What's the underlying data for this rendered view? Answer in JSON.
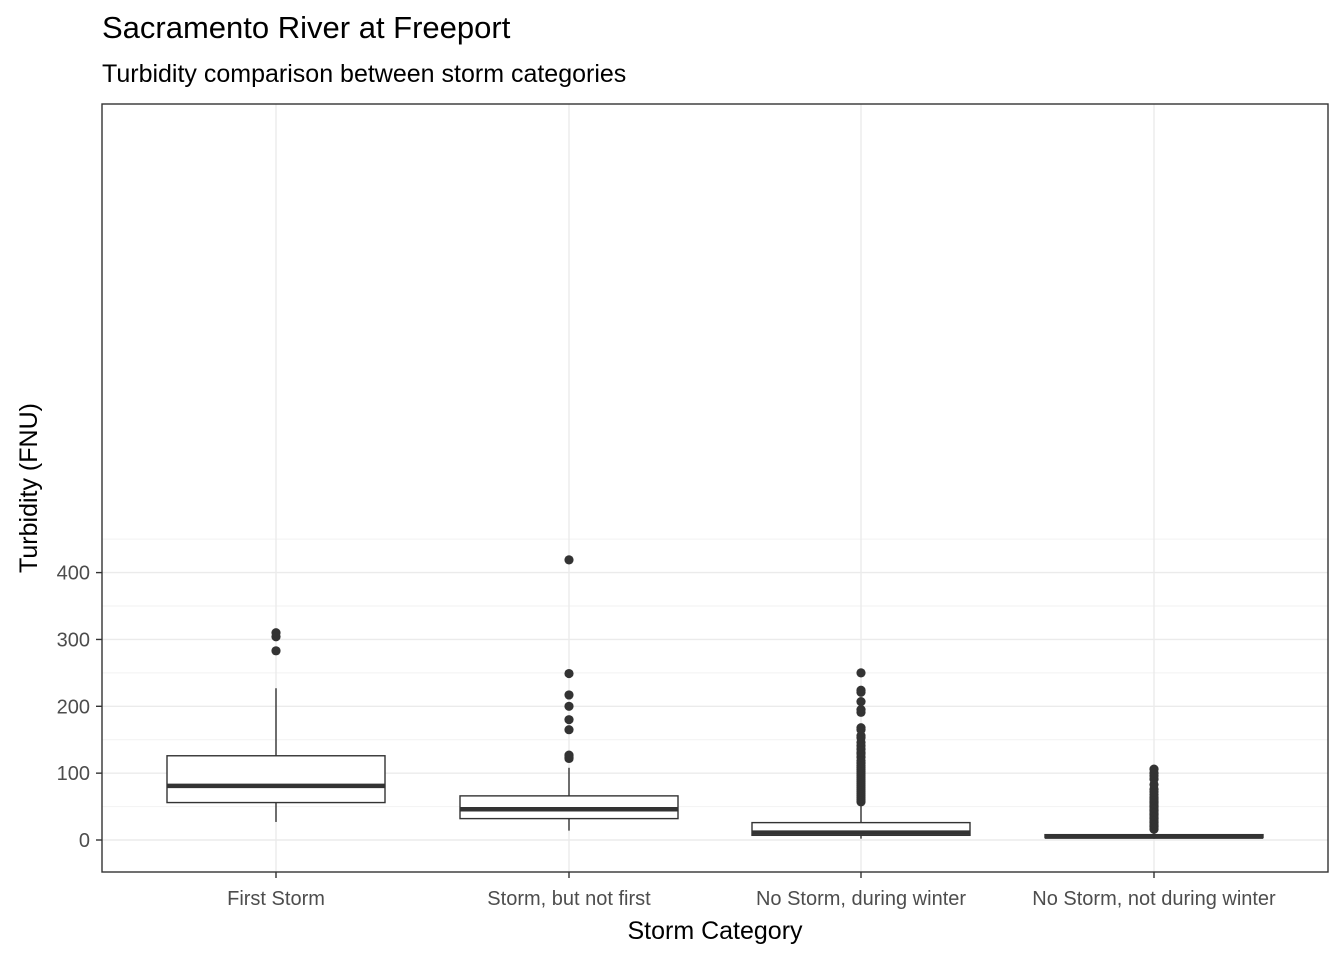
{
  "chart_data": {
    "type": "boxplot",
    "title": "Sacramento River at Freeport",
    "subtitle": "Turbidity comparison between storm categories",
    "xlabel": "Storm Category",
    "ylabel": "Turbidity (FNU)",
    "ylim": [
      -20,
      440
    ],
    "yticks": [
      0,
      100,
      200,
      300,
      400
    ],
    "grid": true,
    "categories": [
      "First Storm",
      "Storm, but not first",
      "No Storm, during winter",
      "No Storm, not during winter"
    ],
    "boxes": [
      {
        "q1": 56,
        "median": 81,
        "q3": 126,
        "whisker_low": 27,
        "whisker_high": 227,
        "outliers": [
          283,
          304,
          310
        ]
      },
      {
        "q1": 32,
        "median": 46,
        "q3": 66,
        "whisker_low": 14,
        "whisker_high": 108,
        "outliers": [
          122,
          124,
          127,
          165,
          180,
          200,
          217,
          249,
          419
        ]
      },
      {
        "q1": 7,
        "median": 11,
        "q3": 26,
        "whisker_low": 2,
        "whisker_high": 56,
        "outliers": [
          57,
          60,
          63,
          66,
          69,
          72,
          75,
          78,
          81,
          84,
          87,
          90,
          93,
          96,
          99,
          102,
          105,
          108,
          111,
          115,
          119,
          124,
          129,
          131,
          136,
          141,
          146,
          153,
          156,
          165,
          168,
          191,
          195,
          207,
          221,
          224,
          250
        ]
      },
      {
        "q1": 3.5,
        "median": 5,
        "q3": 8,
        "whisker_low": 2,
        "whisker_high": 15,
        "outliers": [
          16,
          18,
          20,
          22,
          24,
          26,
          28,
          30,
          32,
          34,
          36,
          38,
          40,
          42,
          44,
          46,
          48,
          50,
          52,
          54,
          56,
          58,
          60,
          62,
          64,
          68,
          72,
          76,
          83,
          91,
          96,
          100,
          106
        ]
      }
    ]
  }
}
